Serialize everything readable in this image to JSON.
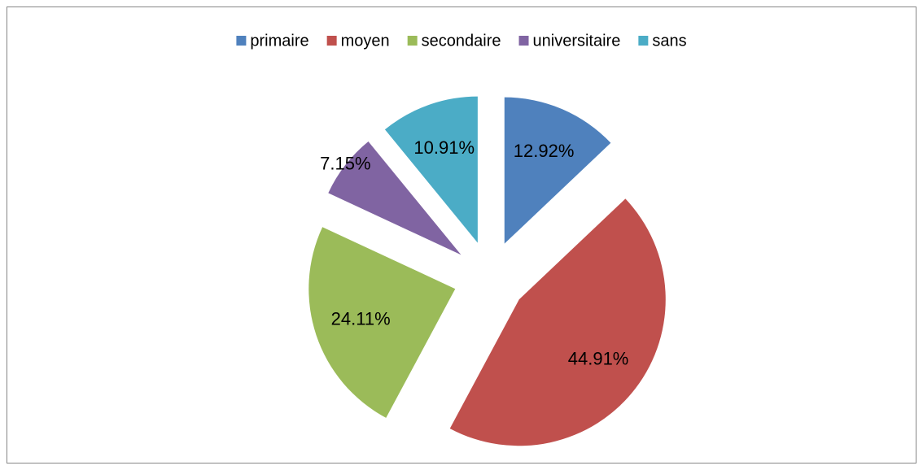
{
  "chart_data": {
    "type": "pie",
    "categories": [
      "primaire",
      "moyen",
      "secondaire",
      "universitaire",
      "sans"
    ],
    "values": [
      12.92,
      44.91,
      24.11,
      7.15,
      10.91
    ],
    "value_labels": [
      "12.92%",
      "44.91%",
      "24.11%",
      "7.15%",
      "10.91%"
    ],
    "colors": [
      "#4f81bd",
      "#c0504d",
      "#9bbb59",
      "#8064a2",
      "#4bacc6"
    ],
    "legend": "top"
  }
}
